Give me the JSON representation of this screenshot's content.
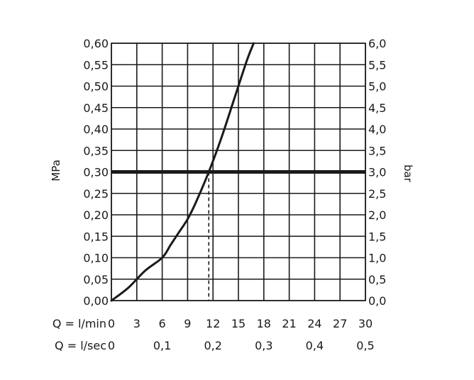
{
  "chart_data": {
    "type": "line",
    "title": "",
    "ylabel": "MPa",
    "y2label": "bar",
    "x_row_labels": [
      "Q = l/min",
      "Q = l/sec"
    ],
    "xlim": [
      0,
      30
    ],
    "ylim": [
      0,
      0.6
    ],
    "grid": true,
    "x_ticks_lmin": [
      "0",
      "3",
      "6",
      "9",
      "12",
      "15",
      "18",
      "21",
      "24",
      "27",
      "30"
    ],
    "x_ticks_lsec": [
      {
        "value": 0,
        "label": "0"
      },
      {
        "value": 6,
        "label": "0,1"
      },
      {
        "value": 12,
        "label": "0,2"
      },
      {
        "value": 18,
        "label": "0,3"
      },
      {
        "value": 24,
        "label": "0,4"
      },
      {
        "value": 30,
        "label": "0,5"
      }
    ],
    "y_ticks_mpa": [
      "0,00",
      "0,05",
      "0,10",
      "0,15",
      "0,20",
      "0,25",
      "0,30",
      "0,35",
      "0,40",
      "0,45",
      "0,50",
      "0,55",
      "0,60"
    ],
    "y_ticks_bar": [
      "0,0",
      "0,5",
      "1,0",
      "1,5",
      "2,0",
      "2,5",
      "3,0",
      "3,5",
      "4,0",
      "4,5",
      "5,0",
      "5,5",
      "6,0"
    ],
    "series": [
      {
        "x": [
          0,
          2,
          4,
          6,
          7,
          8,
          9,
          10,
          11.5,
          13,
          14.5,
          16,
          16.8
        ],
        "y": [
          0,
          0.03,
          0.07,
          0.1,
          0.13,
          0.16,
          0.19,
          0.23,
          0.3,
          0.38,
          0.47,
          0.56,
          0.6
        ]
      }
    ],
    "reference_line": {
      "y": 0.3,
      "x_intersect": 11.5
    }
  }
}
